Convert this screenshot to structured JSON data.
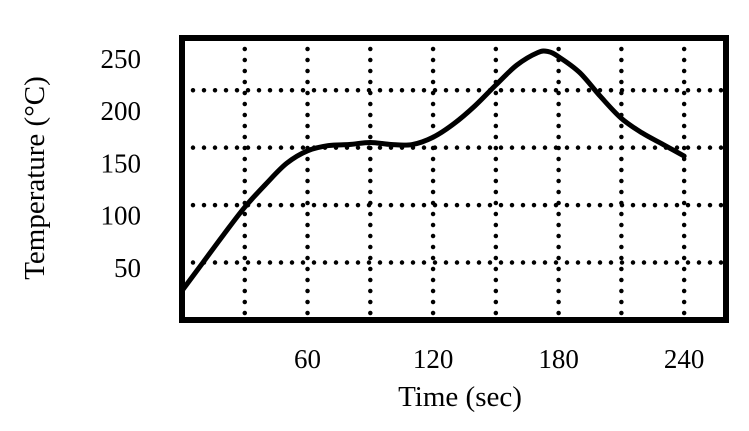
{
  "chart_data": {
    "type": "line",
    "title": "",
    "xlabel": "Time (sec)",
    "ylabel": "Temperature (°C)",
    "xlim": [
      0,
      260
    ],
    "ylim": [
      0,
      270
    ],
    "x_ticks": [
      60,
      120,
      180,
      240
    ],
    "x_tick_labels": [
      "60",
      "120",
      "180",
      "240"
    ],
    "y_ticks": [
      50,
      100,
      150,
      200,
      250
    ],
    "y_tick_labels": [
      "50",
      "100",
      "150",
      "200",
      "250"
    ],
    "x_grid": [
      30,
      60,
      90,
      120,
      150,
      180,
      210,
      240
    ],
    "y_grid": [
      55,
      110,
      165,
      220
    ],
    "grid": true,
    "grid_style": "dotted",
    "legend": "none",
    "series": [
      {
        "x": [
          0,
          10,
          20,
          30,
          40,
          50,
          60,
          70,
          80,
          90,
          100,
          110,
          120,
          130,
          140,
          150,
          160,
          170,
          175,
          180,
          190,
          200,
          210,
          220,
          230,
          240
        ],
        "y": [
          28,
          55,
          82,
          108,
          130,
          150,
          162,
          167,
          168,
          170,
          168,
          168,
          175,
          188,
          205,
          225,
          244,
          256,
          257,
          252,
          237,
          214,
          193,
          179,
          168,
          157
        ],
        "color": "#000000"
      }
    ]
  }
}
